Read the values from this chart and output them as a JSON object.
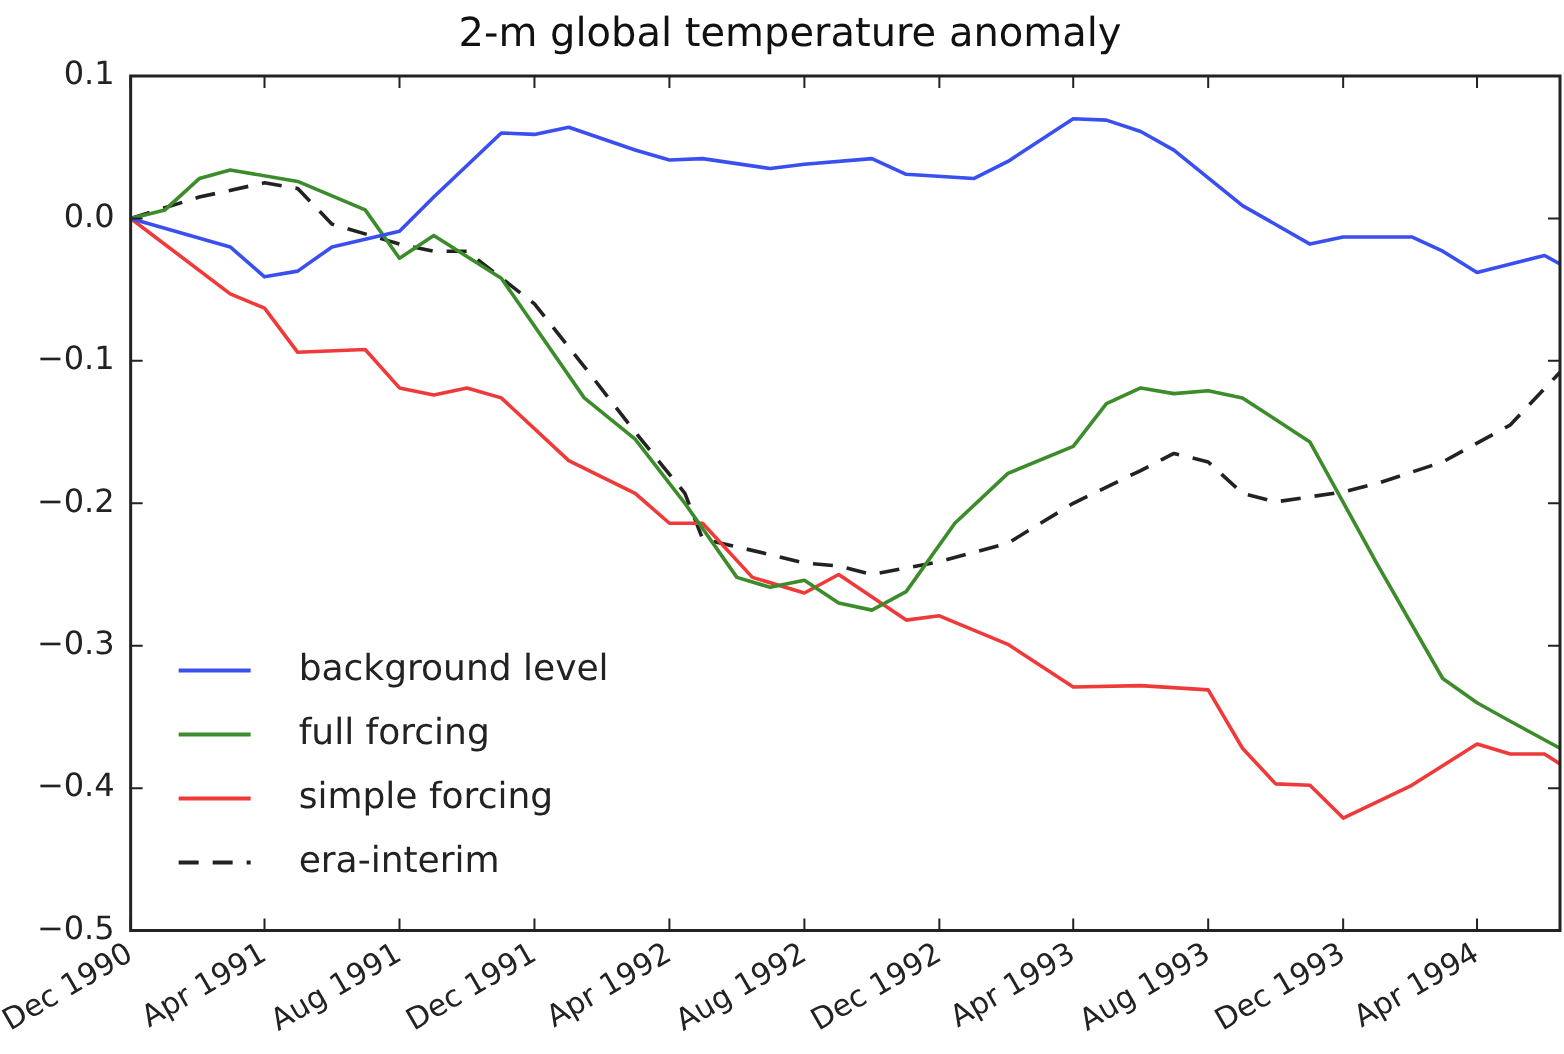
{
  "chart_data": {
    "type": "line",
    "title": "2-m global temperature anomaly",
    "xlim": [
      "1990-12",
      "1994-06-15"
    ],
    "xticks": [
      {
        "value": "1990-12",
        "label": "Dec 1990"
      },
      {
        "value": "1991-04",
        "label": "Apr 1991"
      },
      {
        "value": "1991-08",
        "label": "Aug 1991"
      },
      {
        "value": "1991-12",
        "label": "Dec 1991"
      },
      {
        "value": "1992-04",
        "label": "Apr 1992"
      },
      {
        "value": "1992-08",
        "label": "Aug 1992"
      },
      {
        "value": "1992-12",
        "label": "Dec 1992"
      },
      {
        "value": "1993-04",
        "label": "Apr 1993"
      },
      {
        "value": "1993-08",
        "label": "Aug 1993"
      },
      {
        "value": "1993-12",
        "label": "Dec 1993"
      },
      {
        "value": "1994-04",
        "label": "Apr 1994"
      }
    ],
    "ylim": [
      -0.5,
      0.1
    ],
    "yticks": [
      {
        "value": -0.5,
        "label": "−0.5"
      },
      {
        "value": -0.4,
        "label": "−0.4"
      },
      {
        "value": -0.3,
        "label": "−0.3"
      },
      {
        "value": -0.2,
        "label": "−0.2"
      },
      {
        "value": -0.1,
        "label": "−0.1"
      },
      {
        "value": 0,
        "label": "0.0"
      },
      {
        "value": 0.1,
        "label": "0.1"
      }
    ],
    "grid": false,
    "legend": "bottom left",
    "series": [
      {
        "name": "background level",
        "color": "#3a4ff0",
        "line_style": "solid",
        "x": [
          "1990-12",
          "1991-03",
          "1991-04",
          "1991-05",
          "1991-06",
          "1991-08",
          "1991-09",
          "1991-11",
          "1991-12",
          "1992-01",
          "1992-03",
          "1992-04",
          "1992-05",
          "1992-07",
          "1992-08",
          "1992-10",
          "1992-11",
          "1993-01",
          "1993-02",
          "1993-04",
          "1993-05",
          "1993-06",
          "1993-07",
          "1993-09",
          "1993-11",
          "1993-12",
          "1994-02",
          "1994-03",
          "1994-04",
          "1994-06",
          "1994-06-15"
        ],
        "values": [
          0,
          -0.02,
          -0.041,
          -0.037,
          -0.02,
          -0.009,
          0.015,
          0.06,
          0.059,
          0.064,
          0.048,
          0.041,
          0.042,
          0.035,
          0.038,
          0.042,
          0.031,
          0.028,
          0.04,
          0.07,
          0.069,
          0.061,
          0.048,
          0.009,
          -0.018,
          -0.013,
          -0.013,
          -0.023,
          -0.038,
          -0.026,
          -0.032
        ]
      },
      {
        "name": "full forcing",
        "color": "#3c8c2c",
        "line_style": "solid",
        "x": [
          "1990-12",
          "1991-01",
          "1991-02",
          "1991-03",
          "1991-05",
          "1991-07",
          "1991-08",
          "1991-09",
          "1991-11",
          "1992-01-15",
          "1992-03",
          "1992-04-15",
          "1992-06",
          "1992-07",
          "1992-08",
          "1992-09",
          "1992-10",
          "1992-11",
          "1992-12-15",
          "1993-02",
          "1993-04",
          "1993-05",
          "1993-06",
          "1993-07",
          "1993-08",
          "1993-09",
          "1993-11",
          "1994-01",
          "1994-03",
          "1994-04",
          "1994-05",
          "1994-06-15"
        ],
        "values": [
          0,
          0.006,
          0.028,
          0.034,
          0.026,
          0.006,
          -0.028,
          -0.012,
          -0.042,
          -0.126,
          -0.155,
          -0.2,
          -0.252,
          -0.259,
          -0.254,
          -0.27,
          -0.275,
          -0.262,
          -0.214,
          -0.179,
          -0.16,
          -0.13,
          -0.119,
          -0.123,
          -0.121,
          -0.126,
          -0.157,
          -0.243,
          -0.323,
          -0.34,
          -0.353,
          -0.372
        ]
      },
      {
        "name": "simple forcing",
        "color": "#f03a3a",
        "line_style": "solid",
        "x": [
          "1990-12",
          "1991-03",
          "1991-04",
          "1991-05",
          "1991-07",
          "1991-08",
          "1991-09",
          "1991-10",
          "1991-11",
          "1992-01",
          "1992-03",
          "1992-04",
          "1992-05",
          "1992-06-15",
          "1992-08",
          "1992-09",
          "1992-11",
          "1992-12",
          "1993-02",
          "1993-04",
          "1993-06",
          "1993-08",
          "1993-09",
          "1993-10",
          "1993-11",
          "1993-12",
          "1994-02",
          "1994-04",
          "1994-05",
          "1994-06",
          "1994-06-15"
        ],
        "values": [
          0,
          -0.053,
          -0.063,
          -0.094,
          -0.092,
          -0.119,
          -0.124,
          -0.119,
          -0.126,
          -0.17,
          -0.193,
          -0.214,
          -0.214,
          -0.252,
          -0.263,
          -0.25,
          -0.282,
          -0.279,
          -0.299,
          -0.329,
          -0.328,
          -0.331,
          -0.372,
          -0.397,
          -0.398,
          -0.421,
          -0.398,
          -0.369,
          -0.376,
          -0.376,
          -0.383
        ]
      },
      {
        "name": "era-interim",
        "color": "#222222",
        "line_style": "dashed",
        "x": [
          "1990-12",
          "1991-02",
          "1991-04",
          "1991-05",
          "1991-06",
          "1991-08",
          "1991-09",
          "1991-10",
          "1991-12",
          "1992-01-15",
          "1992-03",
          "1992-04-15",
          "1992-05",
          "1992-07",
          "1992-08",
          "1992-09",
          "1992-10",
          "1992-12",
          "1993-02",
          "1993-04",
          "1993-06",
          "1993-07",
          "1993-08",
          "1993-09",
          "1993-10",
          "1993-12",
          "1994-01",
          "1994-03",
          "1994-05",
          "1994-06-15"
        ],
        "values": [
          0,
          0.015,
          0.025,
          0.021,
          -0.004,
          -0.018,
          -0.023,
          -0.023,
          -0.06,
          -0.104,
          -0.15,
          -0.193,
          -0.225,
          -0.236,
          -0.242,
          -0.244,
          -0.25,
          -0.241,
          -0.228,
          -0.2,
          -0.177,
          -0.165,
          -0.171,
          -0.193,
          -0.199,
          -0.192,
          -0.186,
          -0.171,
          -0.145,
          -0.108
        ]
      }
    ]
  }
}
